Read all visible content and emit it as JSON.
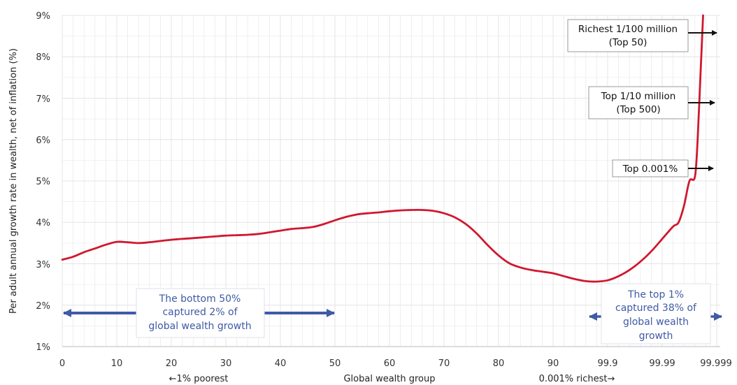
{
  "chart_data": {
    "type": "line",
    "title": "",
    "xlabel": "Global wealth group",
    "ylabel": "Per adult annual growth rate in wealth, net of inflation (%)",
    "x_tick_labels": [
      "0",
      "10",
      "20",
      "30",
      "40",
      "50",
      "60",
      "70",
      "80",
      "90",
      "99.9",
      "99.99",
      "99.999"
    ],
    "y_tick_labels": [
      "1%",
      "2%",
      "3%",
      "4%",
      "5%",
      "6%",
      "7%",
      "8%",
      "9%"
    ],
    "ylim": [
      1,
      9
    ],
    "grid": true,
    "x_axis_notes": {
      "left": "←1% poorest",
      "right": "0.001% richest→"
    },
    "series": [
      {
        "color": "#d0182e",
        "points": [
          [
            0,
            3.1
          ],
          [
            2,
            3.17
          ],
          [
            4,
            3.28
          ],
          [
            6,
            3.37
          ],
          [
            8,
            3.46
          ],
          [
            10,
            3.53
          ],
          [
            12,
            3.52
          ],
          [
            14,
            3.5
          ],
          [
            16,
            3.52
          ],
          [
            18,
            3.55
          ],
          [
            20,
            3.58
          ],
          [
            22,
            3.6
          ],
          [
            24,
            3.62
          ],
          [
            26,
            3.64
          ],
          [
            28,
            3.66
          ],
          [
            30,
            3.68
          ],
          [
            32,
            3.69
          ],
          [
            34,
            3.7
          ],
          [
            36,
            3.72
          ],
          [
            38,
            3.76
          ],
          [
            40,
            3.8
          ],
          [
            42,
            3.84
          ],
          [
            44,
            3.86
          ],
          [
            46,
            3.89
          ],
          [
            48,
            3.96
          ],
          [
            50,
            4.05
          ],
          [
            52,
            4.13
          ],
          [
            54,
            4.19
          ],
          [
            56,
            4.22
          ],
          [
            58,
            4.24
          ],
          [
            60,
            4.27
          ],
          [
            62,
            4.29
          ],
          [
            64,
            4.3
          ],
          [
            66,
            4.3
          ],
          [
            68,
            4.28
          ],
          [
            70,
            4.22
          ],
          [
            72,
            4.12
          ],
          [
            74,
            3.96
          ],
          [
            76,
            3.73
          ],
          [
            78,
            3.45
          ],
          [
            80,
            3.2
          ],
          [
            82,
            3.01
          ],
          [
            84,
            2.91
          ],
          [
            86,
            2.85
          ],
          [
            88,
            2.81
          ],
          [
            90,
            2.77
          ],
          [
            92,
            2.7
          ],
          [
            94,
            2.63
          ],
          [
            96,
            2.58
          ],
          [
            98,
            2.57
          ],
          [
            100,
            2.6
          ],
          [
            102,
            2.7
          ],
          [
            104,
            2.85
          ],
          [
            106,
            3.05
          ],
          [
            108,
            3.3
          ],
          [
            110,
            3.6
          ],
          [
            112,
            3.9
          ],
          [
            113,
            4.0
          ],
          [
            114,
            4.4
          ],
          [
            115,
            5.0
          ],
          [
            116,
            5.1
          ],
          [
            116.5,
            6.0
          ],
          [
            117,
            7.5
          ],
          [
            117.5,
            9.0
          ]
        ]
      }
    ],
    "annotations": [
      {
        "key": "richest",
        "lines": [
          "Richest 1/100 million",
          "(Top 50)"
        ]
      },
      {
        "key": "top500",
        "lines": [
          "Top 1/10 million",
          "(Top 500)"
        ]
      },
      {
        "key": "top0001",
        "lines": [
          "Top 0.001%"
        ]
      },
      {
        "key": "bottom50",
        "lines": [
          "The bottom 50%",
          "captured 2% of",
          "global wealth growth"
        ]
      },
      {
        "key": "top1",
        "lines": [
          "The top 1%",
          "captured 38% of",
          "global wealth",
          "growth"
        ]
      }
    ],
    "colors": {
      "line": "#d0182e",
      "grid": "#e4e4e4",
      "arrow_blue": "#3f5aa6",
      "annotation_border": "#9a9a9a"
    }
  }
}
